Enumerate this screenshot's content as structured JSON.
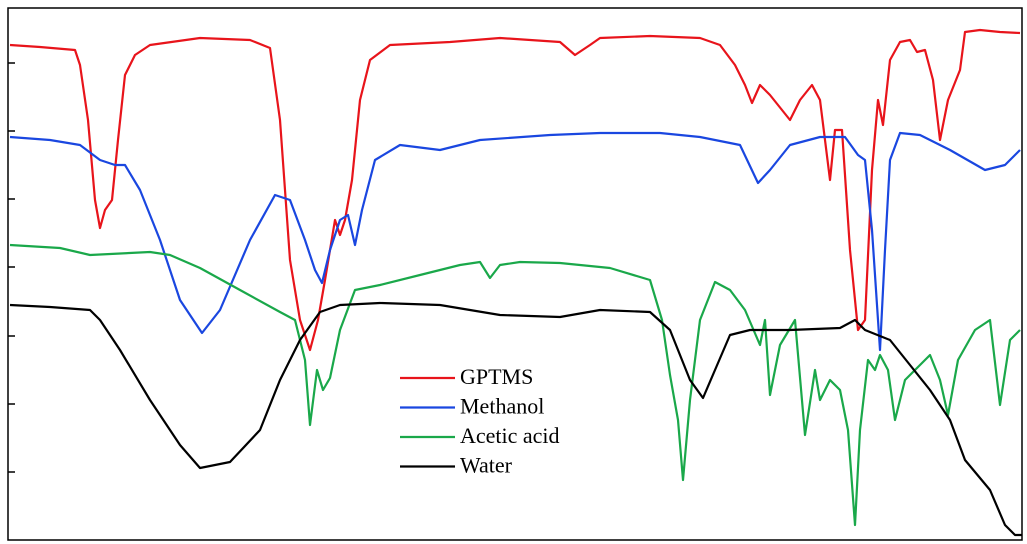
{
  "chart_data": {
    "type": "line",
    "xlim": [
      0,
      1014
    ],
    "ylim": [
      0,
      532
    ],
    "yticks": [
      68,
      136,
      204,
      273,
      341,
      409,
      477
    ],
    "series": [
      {
        "name": "GPTMS",
        "color": "#e8141b",
        "x": [
          2,
          32,
          67,
          72,
          80,
          87,
          92,
          97,
          104,
          110,
          117,
          127,
          142,
          192,
          242,
          262,
          272,
          282,
          292,
          302,
          310,
          317,
          327,
          332,
          337,
          344,
          352,
          362,
          382,
          442,
          492,
          552,
          567,
          582,
          592,
          642,
          692,
          712,
          727,
          737,
          744,
          752,
          762,
          782,
          792,
          804,
          812,
          822,
          827,
          834,
          842,
          850,
          857,
          864,
          870,
          875,
          882,
          892,
          902,
          909,
          917,
          925,
          932,
          940,
          952,
          957,
          972,
          992,
          1012
        ],
        "values": [
          495,
          493,
          490,
          475,
          420,
          340,
          312,
          330,
          340,
          400,
          465,
          485,
          495,
          502,
          500,
          492,
          420,
          280,
          220,
          190,
          220,
          260,
          320,
          305,
          320,
          360,
          440,
          480,
          495,
          498,
          502,
          498,
          485,
          495,
          502,
          504,
          502,
          495,
          475,
          455,
          437,
          455,
          445,
          420,
          440,
          455,
          440,
          360,
          410,
          410,
          290,
          210,
          220,
          370,
          440,
          415,
          480,
          498,
          500,
          488,
          490,
          460,
          400,
          440,
          470,
          508,
          510,
          508,
          507
        ]
      },
      {
        "name": "Methanol",
        "color": "#1a47e0",
        "x": [
          2,
          42,
          72,
          92,
          107,
          117,
          132,
          152,
          172,
          194,
          212,
          242,
          267,
          282,
          297,
          307,
          314,
          322,
          332,
          340,
          347,
          354,
          367,
          392,
          432,
          472,
          542,
          592,
          652,
          692,
          732,
          750,
          762,
          782,
          812,
          837,
          850,
          857,
          864,
          872,
          877,
          882,
          892,
          912,
          942,
          977,
          997,
          1012
        ],
        "values": [
          403,
          400,
          395,
          380,
          375,
          375,
          350,
          300,
          240,
          207,
          230,
          300,
          345,
          340,
          300,
          270,
          257,
          290,
          320,
          325,
          295,
          330,
          380,
          395,
          390,
          400,
          405,
          407,
          407,
          403,
          395,
          357,
          370,
          395,
          403,
          403,
          385,
          380,
          310,
          190,
          290,
          380,
          407,
          405,
          390,
          370,
          375,
          390
        ]
      },
      {
        "name": "Acetic acid",
        "color": "#1aa84a",
        "x": [
          2,
          52,
          82,
          142,
          162,
          192,
          232,
          272,
          287,
          297,
          302,
          309,
          315,
          322,
          332,
          347,
          372,
          412,
          452,
          472,
          482,
          492,
          512,
          552,
          602,
          642,
          654,
          662,
          670,
          675,
          682,
          692,
          707,
          722,
          737,
          752,
          757,
          762,
          772,
          787,
          797,
          807,
          812,
          822,
          832,
          840,
          847,
          852,
          860,
          867,
          872,
          880,
          887,
          897,
          907,
          922,
          932,
          940,
          950,
          967,
          982,
          992,
          1002,
          1012
        ],
        "values": [
          295,
          292,
          285,
          288,
          285,
          272,
          250,
          228,
          220,
          180,
          115,
          170,
          150,
          162,
          210,
          250,
          255,
          265,
          275,
          278,
          262,
          275,
          278,
          277,
          272,
          260,
          220,
          165,
          120,
          60,
          140,
          220,
          258,
          250,
          230,
          195,
          220,
          145,
          195,
          220,
          105,
          170,
          140,
          160,
          150,
          110,
          15,
          110,
          180,
          170,
          185,
          170,
          120,
          160,
          170,
          185,
          160,
          125,
          180,
          210,
          220,
          135,
          200,
          210
        ]
      },
      {
        "name": "Water",
        "color": "#000000",
        "x": [
          2,
          42,
          82,
          92,
          112,
          142,
          172,
          192,
          222,
          252,
          272,
          292,
          312,
          332,
          372,
          432,
          492,
          552,
          592,
          642,
          662,
          682,
          695,
          707,
          722,
          742,
          782,
          832,
          847,
          857,
          882,
          902,
          922,
          942,
          957,
          982,
          997,
          1007,
          1014
        ],
        "values": [
          235,
          233,
          230,
          220,
          190,
          140,
          95,
          72,
          78,
          110,
          160,
          200,
          228,
          235,
          237,
          235,
          225,
          223,
          230,
          228,
          210,
          160,
          142,
          170,
          205,
          210,
          210,
          212,
          220,
          210,
          200,
          175,
          150,
          120,
          80,
          50,
          15,
          5,
          5
        ]
      }
    ]
  }
}
